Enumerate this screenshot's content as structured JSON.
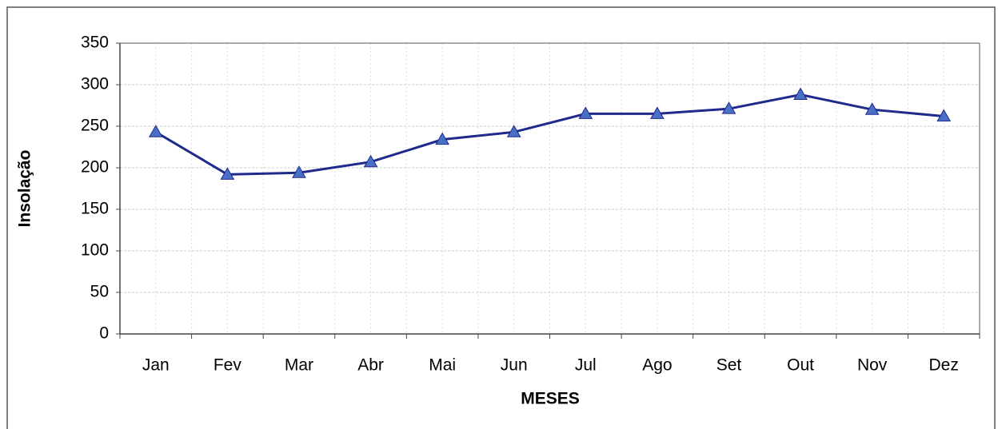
{
  "chart_data": {
    "type": "line",
    "x_label": "MESES",
    "y_label": "Insolação",
    "categories": [
      "Jan",
      "Fev",
      "Mar",
      "Abr",
      "Mai",
      "Jun",
      "Jul",
      "Ago",
      "Set",
      "Out",
      "Nov",
      "Dez"
    ],
    "values": [
      243,
      192,
      194,
      207,
      234,
      243,
      265,
      265,
      271,
      288,
      270,
      262
    ],
    "color": "#1f2a8c",
    "marker_color": "#4a6fc7",
    "ylim": [
      0,
      350
    ],
    "yticks": [
      0,
      50,
      100,
      150,
      200,
      250,
      300,
      350
    ],
    "grid": true
  }
}
